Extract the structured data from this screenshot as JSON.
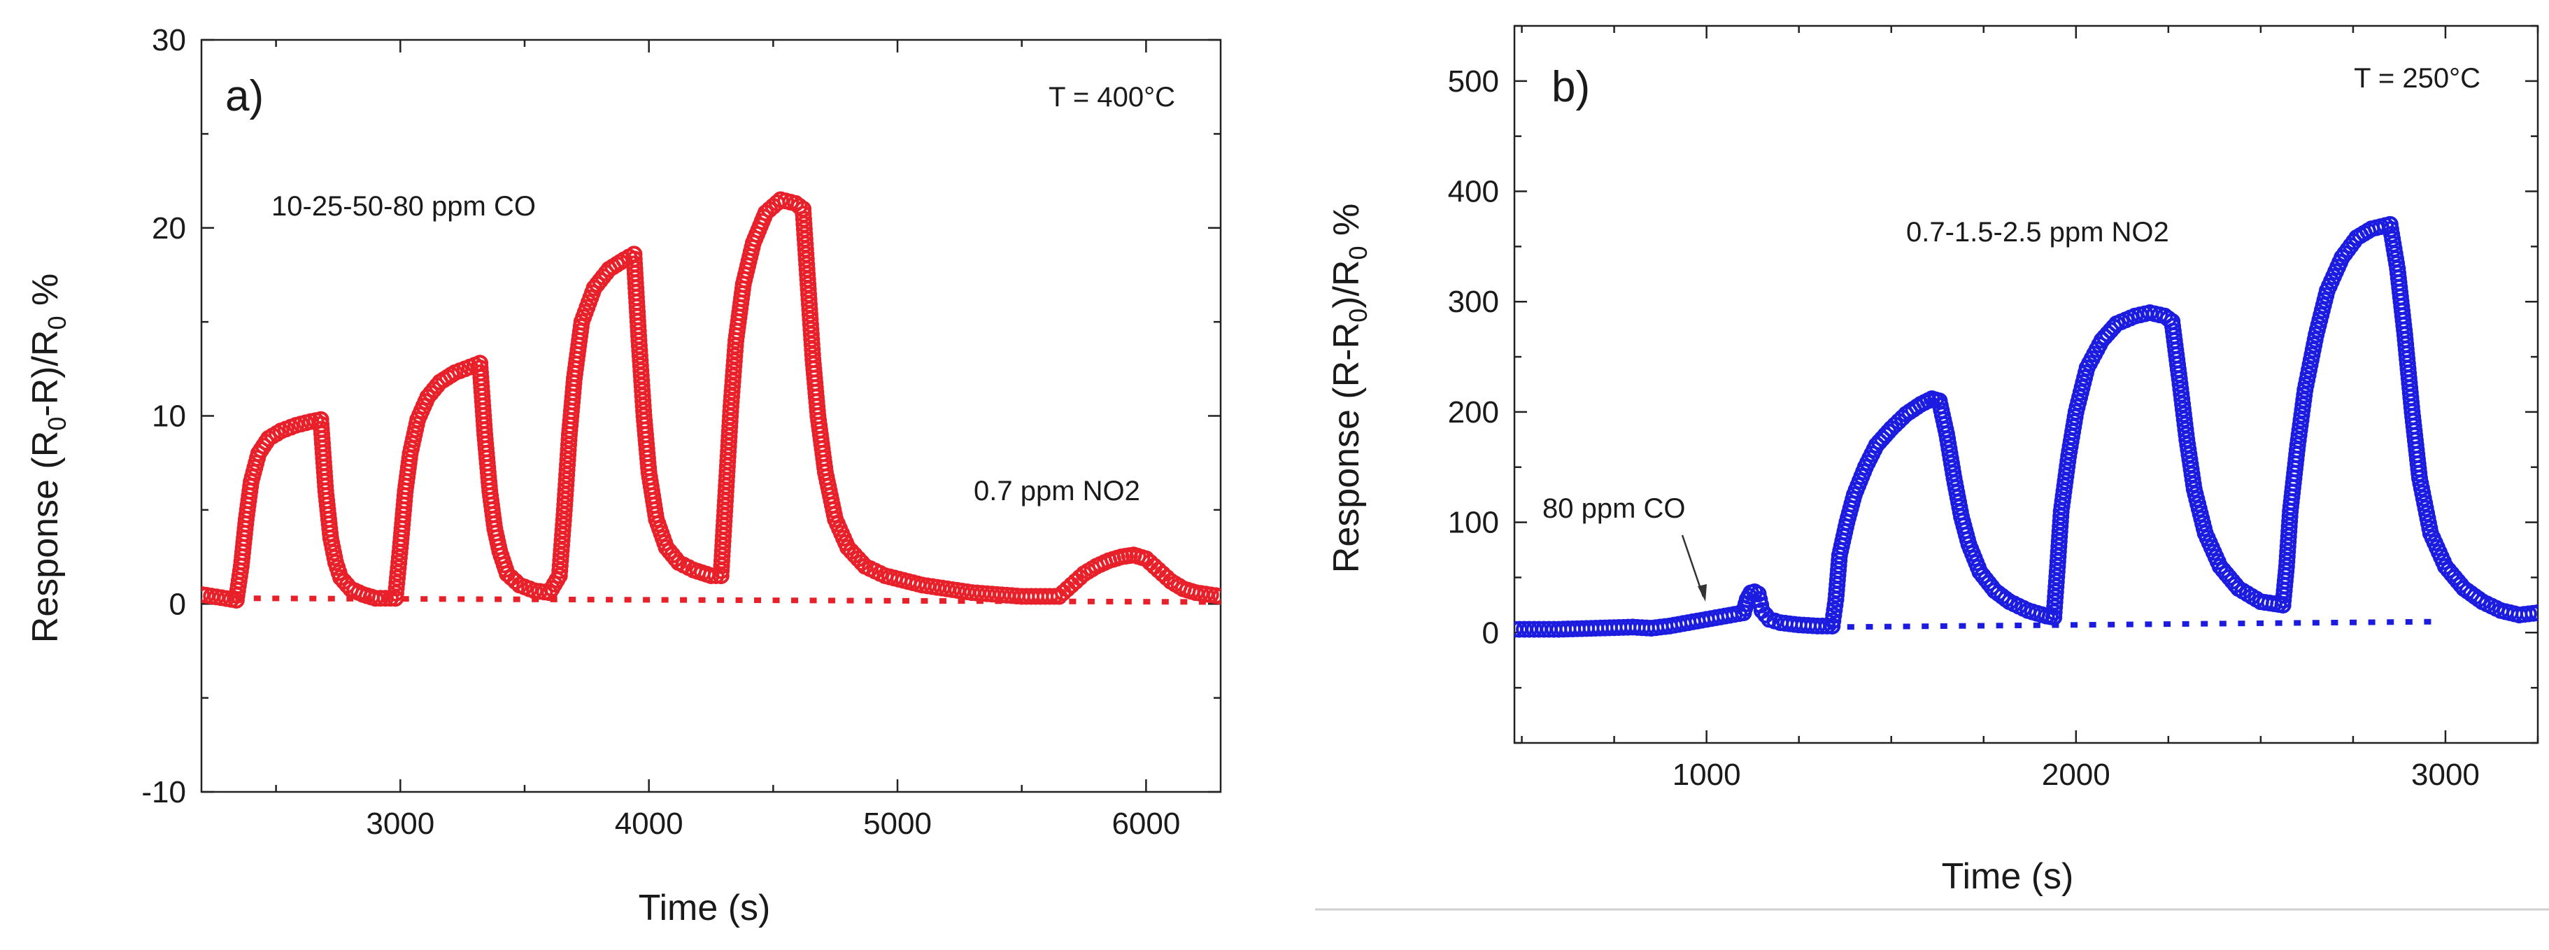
{
  "chart_data": [
    {
      "type": "scatter",
      "panel_label": "a)",
      "temperature_label": "T = 400°C",
      "xlabel": "Time (s)",
      "ylabel": "Response (R0-R)/R0 %",
      "ylabel_parts": [
        "Response (R",
        "0",
        "-R)/R",
        "0",
        " %"
      ],
      "xlim": [
        2200,
        6300
      ],
      "ylim": [
        -10,
        30
      ],
      "xticks": [
        3000,
        4000,
        5000,
        6000
      ],
      "yticks": [
        -10,
        0,
        10,
        20,
        30
      ],
      "color": "#e8202a",
      "annotations": [
        "10-25-50-80 ppm CO",
        "0.7 ppm NO2"
      ],
      "series": [
        {
          "name": "response",
          "style": "open-circle",
          "segments": [
            {
              "x": [
                2200,
                2340
              ],
              "y": [
                0.5,
                0.2
              ]
            },
            {
              "x": [
                2340,
                2360,
                2380,
                2400,
                2430,
                2470,
                2520,
                2580,
                2640,
                2680
              ],
              "y": [
                0.2,
                2,
                4.5,
                6.5,
                8,
                8.8,
                9.2,
                9.5,
                9.7,
                9.8
              ]
            },
            {
              "x": [
                2680,
                2700,
                2720,
                2740,
                2760,
                2800,
                2850,
                2900,
                2980
              ],
              "y": [
                9.8,
                6,
                3.5,
                2.2,
                1.4,
                0.8,
                0.5,
                0.3,
                0.3
              ]
            },
            {
              "x": [
                2980,
                3000,
                3020,
                3040,
                3070,
                3110,
                3160,
                3220,
                3280,
                3320
              ],
              "y": [
                0.3,
                3,
                6,
                8,
                9.8,
                11,
                11.8,
                12.3,
                12.6,
                12.8
              ]
            },
            {
              "x": [
                3320,
                3340,
                3360,
                3380,
                3400,
                3430,
                3480,
                3540,
                3600
              ],
              "y": [
                12.8,
                9,
                6,
                4,
                2.8,
                1.6,
                1,
                0.7,
                0.6
              ]
            },
            {
              "x": [
                3600,
                3640,
                3660,
                3680,
                3700,
                3730,
                3780,
                3840,
                3900,
                3940
              ],
              "y": [
                0.6,
                1.5,
                5,
                9,
                12,
                15,
                16.8,
                17.8,
                18.3,
                18.6
              ]
            },
            {
              "x": [
                3940,
                3960,
                3980,
                4000,
                4030,
                4070,
                4120,
                4180,
                4250,
                4290
              ],
              "y": [
                18.6,
                14,
                10,
                7,
                4.5,
                3,
                2.2,
                1.8,
                1.5,
                1.5
              ]
            },
            {
              "x": [
                4290,
                4310,
                4330,
                4350,
                4380,
                4420,
                4470,
                4530,
                4590,
                4620
              ],
              "y": [
                1.5,
                6,
                10.5,
                14,
                17,
                19.2,
                20.8,
                21.5,
                21.3,
                21
              ]
            },
            {
              "x": [
                4620,
                4640,
                4660,
                4680,
                4710,
                4750,
                4800,
                4870,
                4950,
                5100,
                5300,
                5500,
                5650
              ],
              "y": [
                21,
                17,
                13,
                10,
                7,
                4.5,
                3,
                2,
                1.5,
                1,
                0.6,
                0.4,
                0.4
              ]
            },
            {
              "x": [
                5650,
                5700,
                5750,
                5800,
                5850,
                5900,
                5950,
                6000,
                6050,
                6100,
                6150,
                6200,
                6300
              ],
              "y": [
                0.4,
                1,
                1.6,
                2,
                2.3,
                2.5,
                2.6,
                2.4,
                1.8,
                1.2,
                0.8,
                0.6,
                0.4
              ]
            }
          ]
        },
        {
          "name": "baseline",
          "style": "dotted",
          "x": [
            2350,
            6300
          ],
          "y": [
            0.3,
            0.1
          ]
        }
      ]
    },
    {
      "type": "scatter",
      "panel_label": "b)",
      "temperature_label": "T = 250°C",
      "xlabel": "Time (s)",
      "ylabel": "Response (R-R0)/R0 %",
      "ylabel_parts": [
        "Response (R-R",
        "0",
        ")/R",
        "0",
        " %"
      ],
      "xlim": [
        480,
        3250
      ],
      "ylim": [
        -100,
        550
      ],
      "xticks": [
        1000,
        2000,
        3000
      ],
      "yticks": [
        0,
        100,
        200,
        300,
        400,
        500
      ],
      "color": "#1c1ce0",
      "annotations": [
        "0.7-1.5-2.5 ppm NO2",
        "80 ppm CO"
      ],
      "series": [
        {
          "name": "response",
          "style": "open-circle",
          "segments": [
            {
              "x": [
                480,
                600,
                700,
                800,
                850,
                900,
                950,
                1000,
                1050,
                1100
              ],
              "y": [
                3,
                3,
                4,
                5,
                4,
                6,
                9,
                12,
                15,
                18
              ]
            },
            {
              "x": [
                1100,
                1110,
                1120,
                1130,
                1140,
                1150,
                1170,
                1200,
                1250,
                1300,
                1340
              ],
              "y": [
                18,
                30,
                36,
                37,
                35,
                20,
                12,
                9,
                7,
                6,
                6
              ]
            },
            {
              "x": [
                1340,
                1350,
                1360,
                1380,
                1400,
                1430,
                1460,
                1500,
                1540,
                1580,
                1610,
                1630
              ],
              "y": [
                6,
                30,
                70,
                100,
                125,
                150,
                170,
                185,
                198,
                207,
                212,
                210
              ]
            },
            {
              "x": [
                1630,
                1650,
                1670,
                1690,
                1710,
                1740,
                1780,
                1820,
                1870,
                1920,
                1940
              ],
              "y": [
                210,
                180,
                140,
                105,
                80,
                55,
                38,
                28,
                20,
                15,
                14
              ]
            },
            {
              "x": [
                1940,
                1950,
                1960,
                1980,
                2000,
                2030,
                2070,
                2110,
                2160,
                2200,
                2240,
                2260
              ],
              "y": [
                14,
                60,
                110,
                160,
                200,
                240,
                265,
                280,
                287,
                290,
                287,
                282
              ]
            },
            {
              "x": [
                2260,
                2280,
                2300,
                2320,
                2350,
                2390,
                2440,
                2500,
                2560
              ],
              "y": [
                282,
                230,
                175,
                130,
                90,
                60,
                40,
                28,
                25
              ]
            },
            {
              "x": [
                2560,
                2570,
                2580,
                2600,
                2620,
                2650,
                2680,
                2720,
                2760,
                2800,
                2850
              ],
              "y": [
                25,
                60,
                110,
                170,
                220,
                270,
                310,
                340,
                358,
                366,
                370
              ]
            },
            {
              "x": [
                2850,
                2870,
                2890,
                2910,
                2930,
                2960,
                3000,
                3050,
                3100,
                3150,
                3200,
                3250
              ],
              "y": [
                370,
                330,
                270,
                200,
                140,
                90,
                60,
                40,
                28,
                20,
                16,
                18
              ]
            }
          ]
        },
        {
          "name": "baseline",
          "style": "dotted",
          "x": [
            1340,
            3000
          ],
          "y": [
            5,
            10
          ]
        }
      ]
    }
  ]
}
